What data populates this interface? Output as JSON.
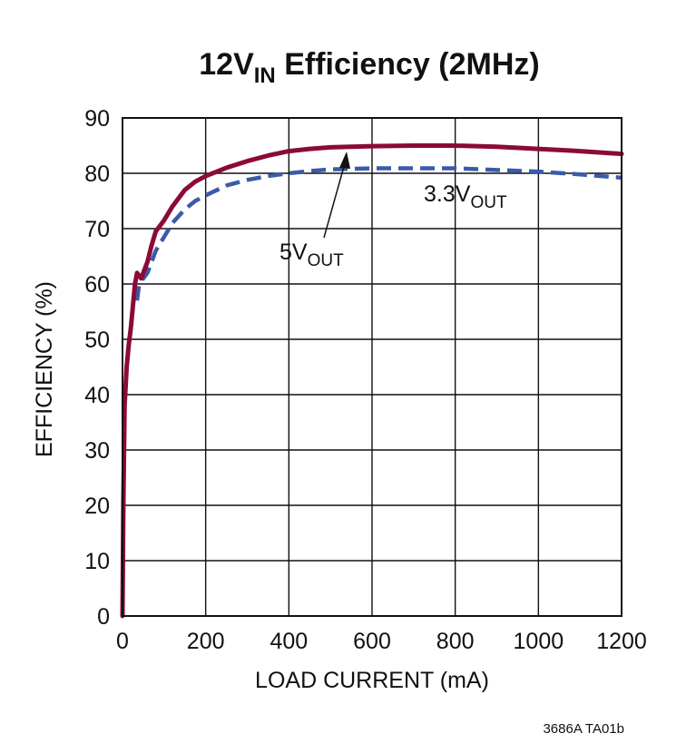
{
  "chart_data": {
    "type": "line",
    "title": {
      "main": "12V",
      "sub": "IN",
      "rest": " Efficiency (2MHz)"
    },
    "xlabel": "LOAD CURRENT (mA)",
    "ylabel": "EFFICIENCY (%)",
    "xlim": [
      0,
      1200
    ],
    "ylim": [
      0,
      90
    ],
    "x_ticks": [
      0,
      200,
      400,
      600,
      800,
      1000,
      1200
    ],
    "y_ticks": [
      0,
      10,
      20,
      30,
      40,
      50,
      60,
      70,
      80,
      90
    ],
    "grid": true,
    "series": [
      {
        "name": "5V OUT",
        "color": "#8b0a36",
        "style": "solid",
        "x": [
          0,
          2,
          5,
          10,
          15,
          20,
          25,
          30,
          35,
          40,
          45,
          50,
          60,
          70,
          80,
          90,
          100,
          120,
          150,
          175,
          200,
          250,
          300,
          350,
          400,
          450,
          500,
          550,
          600,
          700,
          800,
          900,
          1000,
          1100,
          1200
        ],
        "y": [
          0,
          20,
          38,
          45,
          49,
          52,
          56,
          60,
          62,
          61.5,
          61,
          62,
          64,
          67,
          69.5,
          70.5,
          71.5,
          74,
          77,
          78.5,
          79.5,
          81,
          82.2,
          83.2,
          84,
          84.4,
          84.7,
          84.8,
          84.9,
          85,
          85,
          84.8,
          84.4,
          84,
          83.5
        ]
      },
      {
        "name": "3.3V OUT",
        "color": "#3b5aa8",
        "style": "dashed",
        "x": [
          35,
          40,
          50,
          60,
          70,
          80,
          100,
          120,
          150,
          175,
          200,
          250,
          300,
          350,
          400,
          450,
          500,
          550,
          600,
          700,
          800,
          900,
          1000,
          1100,
          1200
        ],
        "y": [
          57,
          60,
          61,
          62,
          64,
          66,
          68.5,
          71,
          73.5,
          75,
          76,
          77.8,
          78.8,
          79.5,
          80,
          80.4,
          80.7,
          80.8,
          80.9,
          80.9,
          80.9,
          80.6,
          80.3,
          79.8,
          79.2
        ]
      }
    ],
    "annotations": [
      {
        "text": "5V",
        "sub": "OUT"
      },
      {
        "text": "3.3V",
        "sub": "OUT"
      }
    ],
    "footer": "3686A TA01b"
  }
}
